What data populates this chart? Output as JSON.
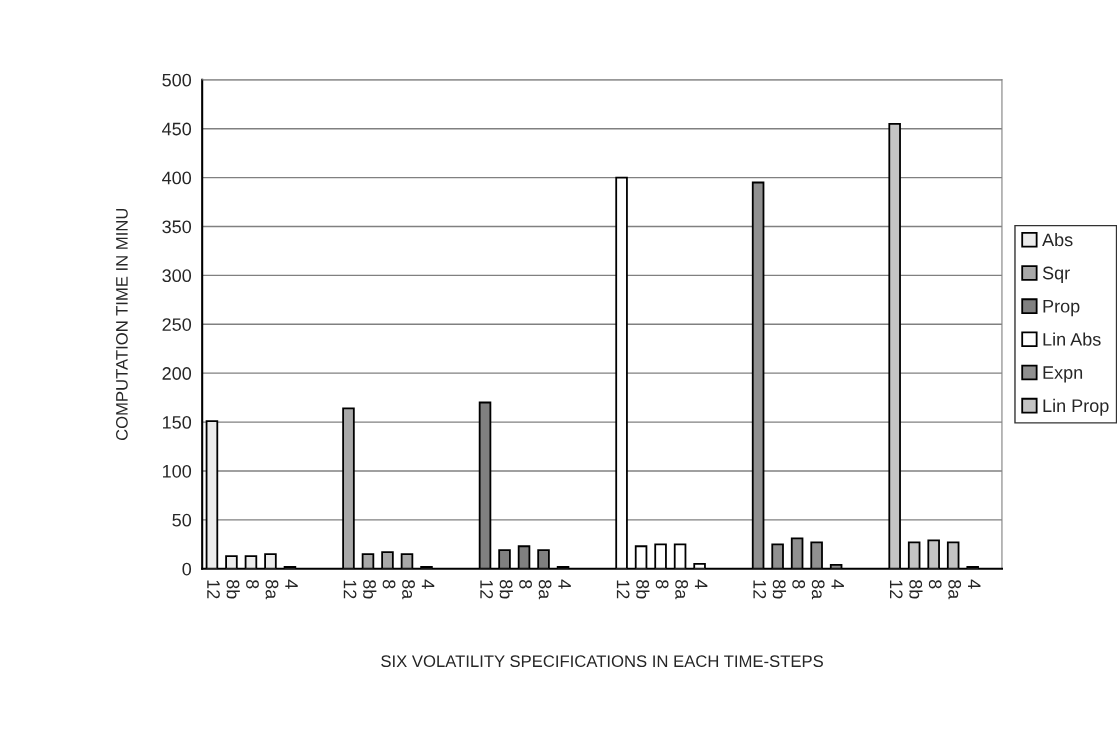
{
  "chart_data": {
    "type": "bar",
    "xlabel": "SIX VOLATILITY SPECIFICATIONS IN EACH TIME-STEPS",
    "ylabel": "COMPUTATION TIME IN MINU",
    "categories": [
      "12",
      "8b",
      "8",
      "8a",
      "4",
      null,
      null,
      "12",
      "8b",
      "8",
      "8a",
      "4",
      null,
      null,
      "12",
      "8b",
      "8",
      "8a",
      "4",
      null,
      null,
      "12",
      "8b",
      "8",
      "8a",
      "4",
      null,
      null,
      "12",
      "8b",
      "8",
      "8a",
      "4",
      null,
      null,
      "12",
      "8b",
      "8",
      "8a",
      "4",
      null
    ],
    "series": [
      {
        "name": "Abs",
        "color": "#ececec",
        "values": [
          151,
          13,
          13,
          15,
          2,
          null,
          null,
          null,
          null,
          null,
          null,
          null,
          null,
          null,
          null,
          null,
          null,
          null,
          null,
          null,
          null,
          null,
          null,
          null,
          null,
          null,
          null,
          null,
          null,
          null,
          null,
          null,
          null,
          null,
          null,
          null,
          null,
          null,
          null,
          null,
          null
        ]
      },
      {
        "name": "Sqr",
        "color": "#a8a8a8",
        "values": [
          null,
          null,
          null,
          null,
          null,
          null,
          null,
          164,
          15,
          17,
          15,
          2,
          null,
          null,
          null,
          null,
          null,
          null,
          null,
          null,
          null,
          null,
          null,
          null,
          null,
          null,
          null,
          null,
          null,
          null,
          null,
          null,
          null,
          null,
          null,
          null,
          null,
          null,
          null,
          null,
          null
        ]
      },
      {
        "name": "Prop",
        "color": "#808080",
        "values": [
          null,
          null,
          null,
          null,
          null,
          null,
          null,
          null,
          null,
          null,
          null,
          null,
          null,
          null,
          170,
          19,
          23,
          19,
          2,
          null,
          null,
          null,
          null,
          null,
          null,
          null,
          null,
          null,
          null,
          null,
          null,
          null,
          null,
          null,
          null,
          null,
          null,
          null,
          null,
          null,
          null
        ]
      },
      {
        "name": "Lin Abs",
        "color": "#ffffff",
        "values": [
          null,
          null,
          null,
          null,
          null,
          null,
          null,
          null,
          null,
          null,
          null,
          null,
          null,
          null,
          null,
          null,
          null,
          null,
          null,
          null,
          null,
          400,
          23,
          25,
          25,
          5,
          null,
          null,
          null,
          null,
          null,
          null,
          null,
          null,
          null,
          null,
          null,
          null,
          null,
          null,
          null
        ]
      },
      {
        "name": "Expn",
        "color": "#909090",
        "values": [
          null,
          null,
          null,
          null,
          null,
          null,
          null,
          null,
          null,
          null,
          null,
          null,
          null,
          null,
          null,
          null,
          null,
          null,
          null,
          null,
          null,
          null,
          null,
          null,
          null,
          null,
          null,
          null,
          395,
          25,
          31,
          27,
          4,
          null,
          null,
          null,
          null,
          null,
          null,
          null,
          null
        ]
      },
      {
        "name": "Lin Prop",
        "color": "#c4c4c4",
        "values": [
          null,
          null,
          null,
          null,
          null,
          null,
          null,
          null,
          null,
          null,
          null,
          null,
          null,
          null,
          null,
          null,
          null,
          null,
          null,
          null,
          null,
          null,
          null,
          null,
          null,
          null,
          null,
          null,
          null,
          null,
          null,
          null,
          null,
          null,
          null,
          455,
          27,
          29,
          27,
          2,
          null
        ]
      }
    ],
    "ylim": [
      0,
      500
    ],
    "yticks": [
      0,
      50,
      100,
      150,
      200,
      250,
      300,
      350,
      400,
      450,
      500
    ],
    "grid": "y",
    "legend": "right"
  }
}
